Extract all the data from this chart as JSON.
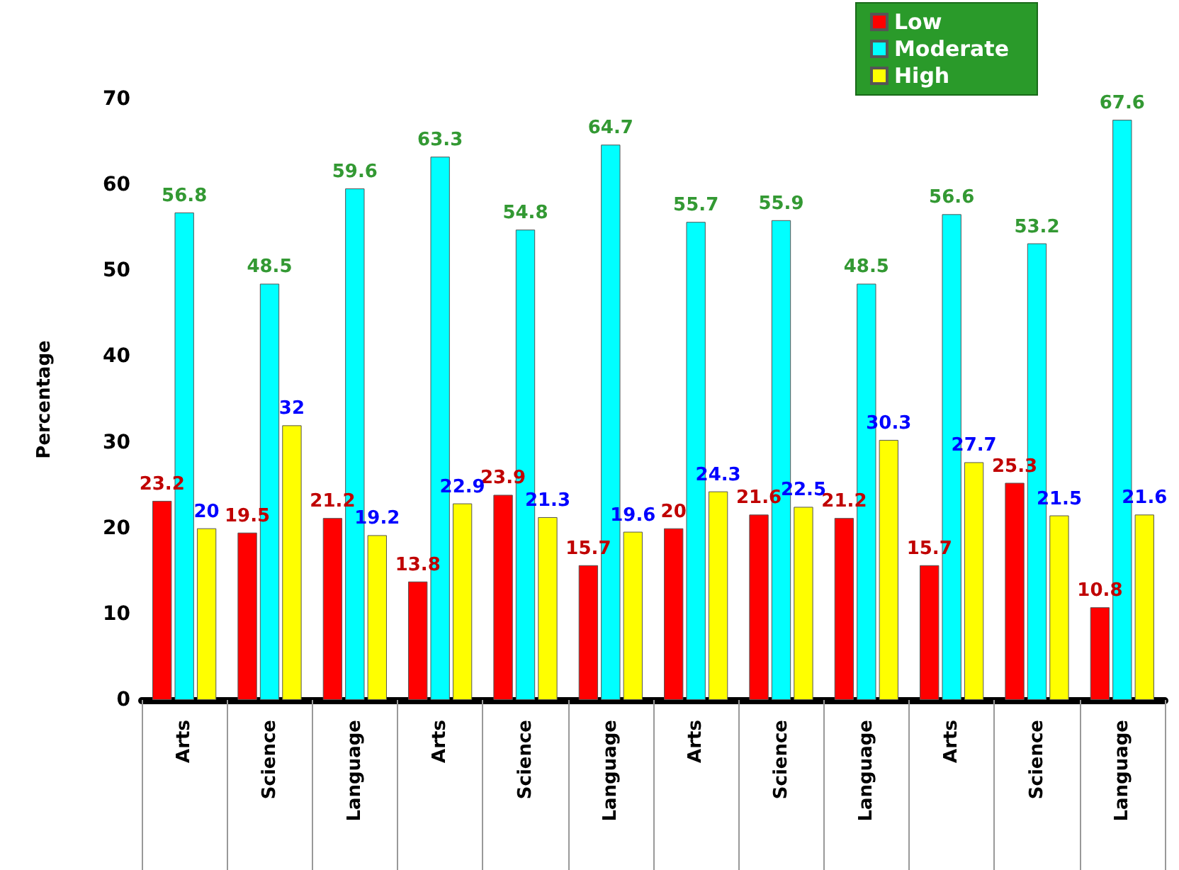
{
  "chart_data": {
    "type": "bar",
    "ylabel": "Percentage",
    "categories": [
      "Arts",
      "Science",
      "Language",
      "Arts",
      "Science",
      "Language",
      "Arts",
      "Science",
      "Language",
      "Arts",
      "Science",
      "Language"
    ],
    "series": [
      {
        "name": "Low",
        "color": "#ff0000",
        "values": [
          23.2,
          19.5,
          21.2,
          13.8,
          23.9,
          15.7,
          20,
          21.6,
          21.2,
          15.7,
          25.3,
          10.8
        ]
      },
      {
        "name": "Moderate",
        "color": "#00ffff",
        "values": [
          56.8,
          48.5,
          59.6,
          63.3,
          54.8,
          64.7,
          55.7,
          55.9,
          48.5,
          56.6,
          53.2,
          67.6
        ]
      },
      {
        "name": "High",
        "color": "#ffff00",
        "values": [
          20,
          32,
          19.2,
          22.9,
          21.3,
          19.6,
          24.3,
          22.5,
          30.3,
          27.7,
          21.5,
          21.6
        ]
      }
    ],
    "ylim": [
      0,
      70
    ],
    "yticks": [
      0,
      10,
      20,
      30,
      40,
      50,
      60,
      70
    ],
    "grid": false,
    "legend": "top right",
    "data_labels": true
  }
}
